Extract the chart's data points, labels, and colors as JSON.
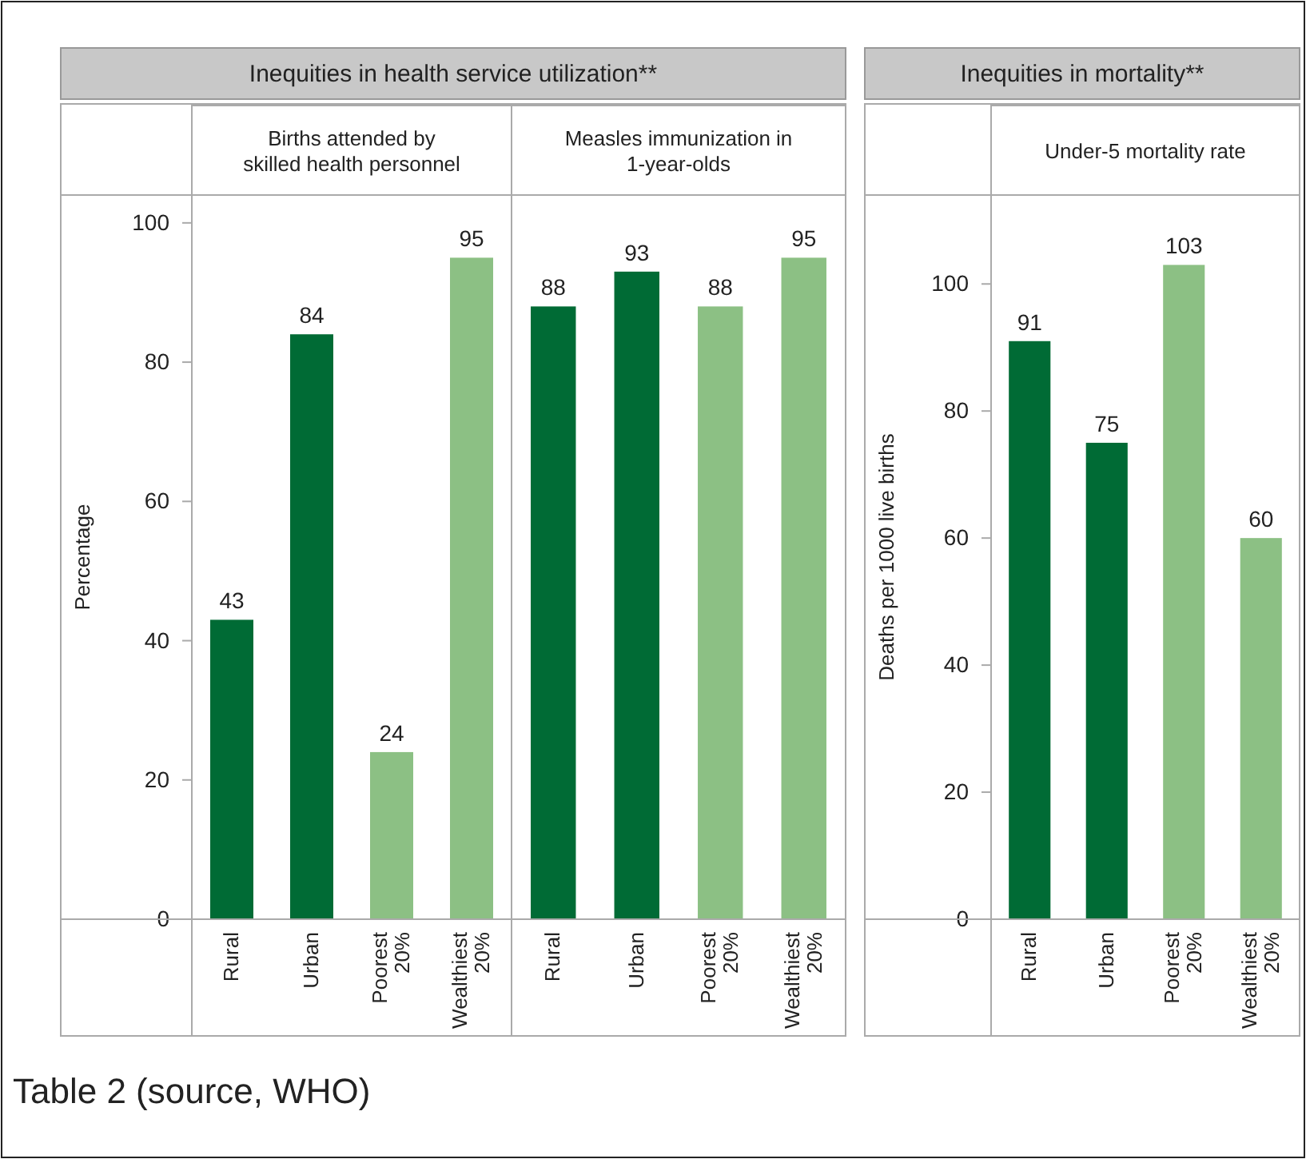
{
  "chart_data": [
    {
      "type": "bar",
      "title": "Inequities in health service utilization**",
      "subtitle": "Births attended by skilled health personnel",
      "ylabel": "Percentage",
      "categories": [
        "Rural",
        "Urban",
        "Poorest 20%",
        "Wealthiest 20%"
      ],
      "values": [
        43,
        84,
        24,
        95
      ],
      "colors": [
        "#006b35",
        "#006b35",
        "#8cc084",
        "#8cc084"
      ],
      "ylim": [
        0,
        104
      ],
      "yticks": [
        0,
        20,
        40,
        60,
        80,
        100
      ],
      "data_labels": true,
      "annotations": [
        "Table 2 (source, WHO)"
      ]
    },
    {
      "type": "bar",
      "subtitle": "Measles immunization in 1-year-olds",
      "categories": [
        "Rural",
        "Urban",
        "Poorest 20%",
        "Wealthiest 20%"
      ],
      "values": [
        88,
        93,
        88,
        95
      ],
      "colors": [
        "#006b35",
        "#006b35",
        "#8cc084",
        "#8cc084"
      ],
      "ylim": [
        0,
        104
      ],
      "tick_labels": "x",
      "data_labels": true
    },
    {
      "type": "bar",
      "title": "Inequities in mortality**",
      "subtitle": "Under-5 mortality rate",
      "ylabel": "Deaths per 1000 live births",
      "categories": [
        "Rural",
        "Urban",
        "Poorest 20%",
        "Wealthiest 20%"
      ],
      "values": [
        91,
        75,
        103,
        60
      ],
      "colors": [
        "#006b35",
        "#006b35",
        "#8cc084",
        "#8cc084"
      ],
      "ylim": [
        0,
        114
      ],
      "yticks": [
        0,
        20,
        40,
        60,
        80,
        100
      ],
      "data_labels": true
    }
  ]
}
